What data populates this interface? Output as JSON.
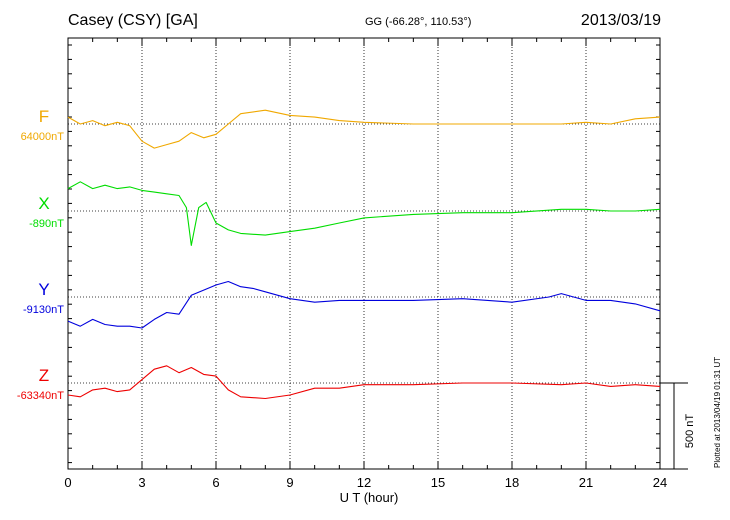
{
  "header": {
    "station": "Casey (CSY)  [GA]",
    "coords": "GG (-66.28°, 110.53°)",
    "date": "2013/03/19"
  },
  "plotted_note": "Plotted at 2013/04/19 01:31  UT",
  "chart_data": {
    "type": "line",
    "xlabel": "U T (hour)",
    "xlim": [
      0,
      24
    ],
    "x_ticks": [
      0,
      3,
      6,
      9,
      12,
      15,
      18,
      21,
      24
    ],
    "scale_bar_label": "500 nT",
    "scale_bar_nT": 500,
    "series": [
      {
        "name": "F",
        "baseline_label": "64000nT",
        "baseline_nT": 64000,
        "color": "#f0a800",
        "x": [
          0,
          0.5,
          1,
          1.5,
          2,
          2.5,
          3,
          3.5,
          4,
          4.5,
          5,
          5.5,
          6,
          6.5,
          7,
          8,
          9,
          10,
          11,
          12,
          14,
          16,
          18,
          20,
          21,
          22,
          23,
          24
        ],
        "y": [
          64040,
          64000,
          64020,
          63990,
          64010,
          63990,
          63900,
          63860,
          63880,
          63900,
          63950,
          63920,
          63940,
          64000,
          64060,
          64080,
          64050,
          64040,
          64020,
          64010,
          64000,
          64000,
          64000,
          64000,
          64010,
          64000,
          64030,
          64040
        ]
      },
      {
        "name": "X",
        "baseline_label": "-890nT",
        "baseline_nT": -890,
        "color": "#00dd00",
        "x": [
          0,
          0.5,
          1,
          1.5,
          2,
          2.5,
          3,
          3.5,
          4,
          4.5,
          4.8,
          5,
          5.3,
          5.6,
          6,
          6.5,
          7,
          8,
          9,
          10,
          11,
          12,
          14,
          16,
          18,
          20,
          21,
          22,
          23,
          24
        ],
        "y": [
          -760,
          -720,
          -760,
          -740,
          -760,
          -750,
          -770,
          -780,
          -790,
          -800,
          -870,
          -1090,
          -870,
          -840,
          -960,
          -1000,
          -1020,
          -1030,
          -1010,
          -990,
          -960,
          -930,
          -910,
          -900,
          -900,
          -880,
          -880,
          -890,
          -890,
          -880
        ]
      },
      {
        "name": "Y",
        "baseline_label": "-9130nT",
        "baseline_nT": -9130,
        "color": "#0000dd",
        "x": [
          0,
          0.5,
          1,
          1.5,
          2,
          2.5,
          3,
          3.5,
          4,
          4.5,
          5,
          5.5,
          6,
          6.5,
          7,
          7.5,
          8,
          9,
          10,
          11,
          12,
          14,
          16,
          18,
          19.5,
          20,
          21,
          22,
          23,
          24
        ],
        "y": [
          -9270,
          -9300,
          -9260,
          -9290,
          -9300,
          -9300,
          -9310,
          -9260,
          -9220,
          -9230,
          -9120,
          -9090,
          -9060,
          -9040,
          -9070,
          -9080,
          -9100,
          -9140,
          -9160,
          -9150,
          -9150,
          -9150,
          -9140,
          -9160,
          -9130,
          -9110,
          -9150,
          -9150,
          -9170,
          -9210
        ]
      },
      {
        "name": "Z",
        "baseline_label": "-63340nT",
        "baseline_nT": -63340,
        "color": "#ee0000",
        "x": [
          0,
          0.5,
          1,
          1.5,
          2,
          2.5,
          3,
          3.5,
          4,
          4.5,
          5,
          5.5,
          6,
          6.5,
          7,
          8,
          9,
          10,
          11,
          12,
          14,
          16,
          18,
          20,
          21,
          22,
          23,
          24
        ],
        "y": [
          -63410,
          -63420,
          -63380,
          -63370,
          -63390,
          -63380,
          -63320,
          -63260,
          -63240,
          -63280,
          -63250,
          -63290,
          -63300,
          -63380,
          -63420,
          -63430,
          -63410,
          -63370,
          -63370,
          -63350,
          -63350,
          -63340,
          -63340,
          -63350,
          -63340,
          -63360,
          -63350,
          -63360
        ]
      }
    ]
  }
}
